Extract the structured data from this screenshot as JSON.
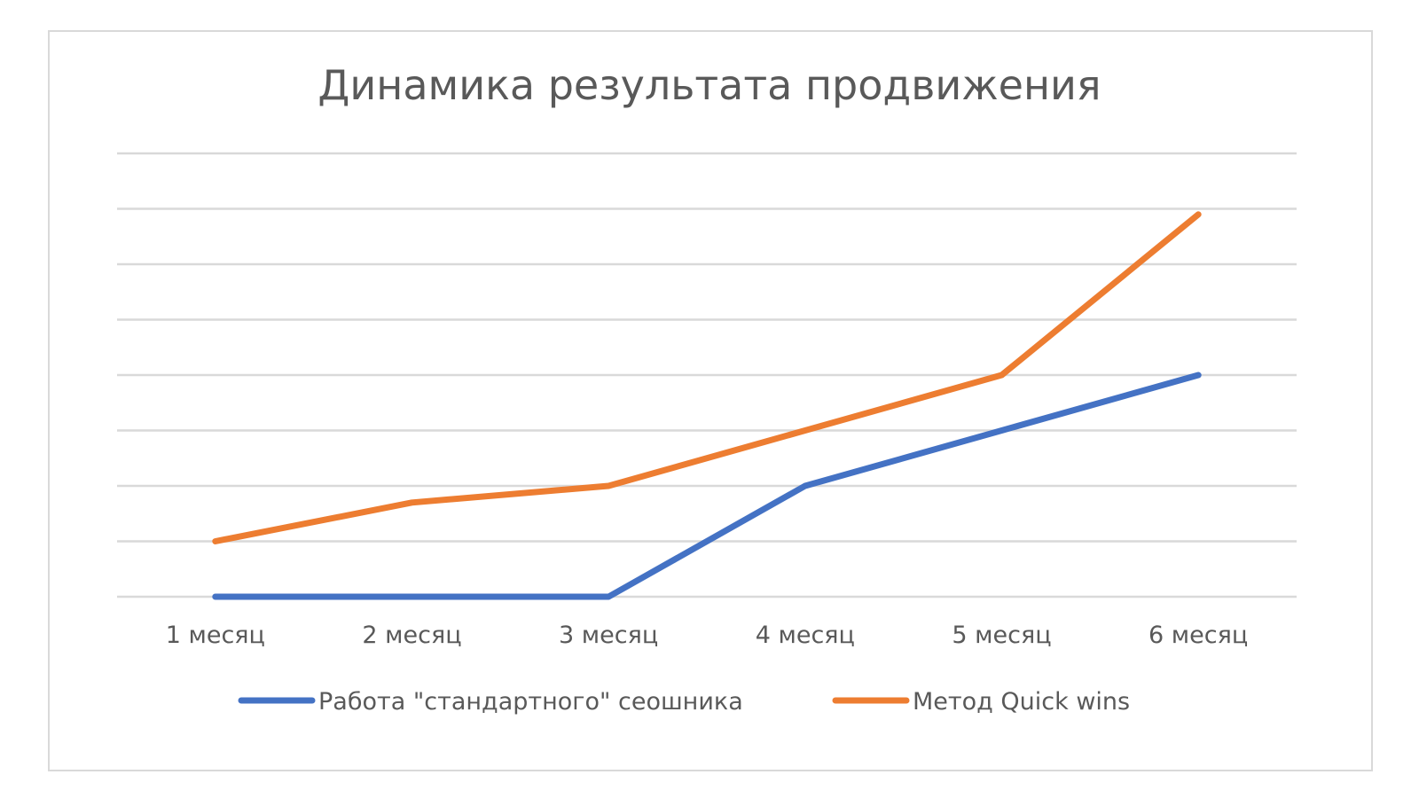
{
  "chart_data": {
    "type": "line",
    "title": "Динамика результата продвижения",
    "xlabel": "",
    "ylabel": "",
    "categories": [
      "1 месяц",
      "2 месяц",
      "3 месяц",
      "4 месяц",
      "5 месяц",
      "6 месяц"
    ],
    "series": [
      {
        "name": "Работа \"стандартного\" сеошника",
        "color": "#4472C4",
        "values": [
          0,
          0,
          0,
          2,
          3,
          4
        ]
      },
      {
        "name": "Метод Quick wins",
        "color": "#ED7D31",
        "values": [
          1,
          1.7,
          2,
          3,
          4,
          6.9
        ]
      }
    ],
    "ylim": [
      0,
      8
    ],
    "y_tick_step": 1,
    "grid": true,
    "y_tick_labels_visible": false,
    "legend_position": "bottom"
  }
}
